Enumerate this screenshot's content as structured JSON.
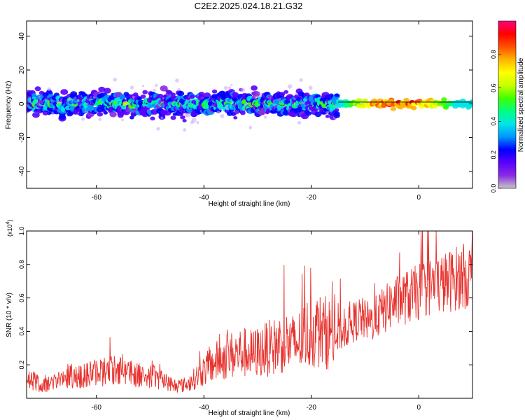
{
  "title": "C2E2.2025.024.18.21.G32",
  "colors": {
    "snr_line": "#e8322e",
    "colorbar": [
      "#c8c8c8",
      "#8a2be2",
      "#5a00ff",
      "#0000ff",
      "#0096ff",
      "#00e6e6",
      "#00ff80",
      "#40ff00",
      "#c8ff00",
      "#ffff00",
      "#ffb400",
      "#ff5000",
      "#ff0000",
      "#ff0080"
    ]
  },
  "chart_data": [
    {
      "type": "heatmap",
      "title": "C2E2.2025.024.18.21.G32",
      "xlabel": "Height of straight line (km)",
      "ylabel": "Frequency (Hz)",
      "xlim": [
        -73,
        10
      ],
      "ylim": [
        -50,
        49
      ],
      "xticks": [
        -60,
        -40,
        -20,
        0
      ],
      "yticks": [
        -40,
        -20,
        0,
        20,
        40
      ],
      "colorbar": {
        "label": "Normalized spectral amplitude",
        "range": [
          0,
          1
        ],
        "ticks": [
          0.0,
          0.2,
          0.4,
          0.6,
          0.8
        ]
      },
      "band": {
        "center_frequency_hz": 0,
        "half_width_hz_noisy_part": 6,
        "half_width_hz_clean_part": 2,
        "clean_from_km": -15,
        "reference_line_hz": 1
      }
    },
    {
      "type": "line",
      "xlabel": "Height of straight line (km)",
      "ylabel": "SNR (10 * v/v)",
      "ylabel_multiplier": "(x10",
      "ylabel_multiplier_exp": "4",
      "xlim": [
        -73,
        10
      ],
      "ylim": [
        0,
        1.0
      ],
      "xticks": [
        -60,
        -40,
        -20,
        0
      ],
      "yticks": [
        0.2,
        0.4,
        0.6,
        0.8,
        1.0
      ],
      "series": [
        {
          "x": [
            -73,
            -70,
            -67,
            -65,
            -63,
            -61,
            -59,
            -57,
            -55,
            -53,
            -51,
            -49,
            -47,
            -45,
            -43,
            -41,
            -39,
            -37,
            -35,
            -33,
            -31,
            -29,
            -27,
            -25,
            -23,
            -21,
            -19,
            -17,
            -15,
            -13,
            -11,
            -9,
            -7,
            -5,
            -3,
            -1,
            1,
            3,
            5,
            7,
            10
          ],
          "y": [
            0.12,
            0.07,
            0.1,
            0.13,
            0.12,
            0.14,
            0.15,
            0.16,
            0.17,
            0.14,
            0.13,
            0.12,
            0.09,
            0.07,
            0.08,
            0.13,
            0.18,
            0.22,
            0.24,
            0.26,
            0.25,
            0.27,
            0.29,
            0.32,
            0.3,
            0.36,
            0.38,
            0.37,
            0.36,
            0.42,
            0.47,
            0.44,
            0.5,
            0.55,
            0.58,
            0.6,
            0.64,
            0.66,
            0.67,
            0.7,
            0.72
          ]
        }
      ]
    }
  ]
}
